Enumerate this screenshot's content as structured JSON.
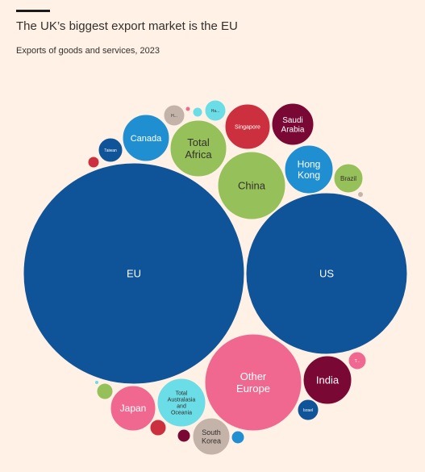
{
  "header": {
    "title": "The UK’s biggest export market is the EU",
    "subtitle": "Exports of goods and services, 2023"
  },
  "colors": {
    "background": "#fff1e5",
    "navy": "#0f5499",
    "blue": "#1f8fd2",
    "green": "#96c05a",
    "pink": "#f06790",
    "red": "#cc303f",
    "maroon": "#7a0835",
    "grey": "#c4b3a9",
    "cyan": "#6bdde6"
  },
  "chart_data": {
    "type": "bubble",
    "title": "The UK’s biggest export market is the EU",
    "subtitle": "Exports of goods and services, 2023",
    "series": [
      {
        "label": "EU",
        "color": "navy",
        "text_color": "#ffffff"
      },
      {
        "label": "US",
        "color": "navy",
        "text_color": "#ffffff"
      },
      {
        "label": "Other Europe",
        "color": "pink",
        "text_color": "#ffffff"
      },
      {
        "label": "China",
        "color": "green",
        "text_color": "#33302e"
      },
      {
        "label": "Total Africa",
        "color": "green",
        "text_color": "#33302e"
      },
      {
        "label": "India",
        "color": "maroon",
        "text_color": "#ffffff"
      },
      {
        "label": "Hong Kong",
        "color": "blue",
        "text_color": "#ffffff"
      },
      {
        "label": "Total Australasia and Oceania",
        "color": "cyan",
        "text_color": "#33302e"
      },
      {
        "label": "Canada",
        "color": "blue",
        "text_color": "#ffffff"
      },
      {
        "label": "Japan",
        "color": "pink",
        "text_color": "#ffffff"
      },
      {
        "label": "Singapore",
        "color": "red",
        "text_color": "#ffffff"
      },
      {
        "label": "Saudi Arabia",
        "color": "maroon",
        "text_color": "#ffffff"
      },
      {
        "label": "South Korea",
        "color": "grey",
        "text_color": "#33302e"
      },
      {
        "label": "Brazil",
        "color": "green",
        "text_color": "#33302e"
      },
      {
        "label": "Taiwan",
        "color": "navy",
        "text_color": "#ffffff"
      },
      {
        "label": "Israel",
        "color": "navy",
        "text_color": "#ffffff"
      },
      {
        "label": "H...",
        "color": "grey",
        "text_color": "#33302e"
      },
      {
        "label": "Ha...",
        "color": "cyan",
        "text_color": "#33302e"
      },
      {
        "label": "T...",
        "color": "pink",
        "text_color": "#ffffff"
      },
      {
        "label": "",
        "color": "red",
        "text_color": "#ffffff"
      },
      {
        "label": "",
        "color": "red",
        "text_color": "#ffffff"
      },
      {
        "label": "",
        "color": "maroon",
        "text_color": "#ffffff"
      },
      {
        "label": "",
        "color": "green",
        "text_color": "#33302e"
      },
      {
        "label": "",
        "color": "blue",
        "text_color": "#ffffff"
      },
      {
        "label": "",
        "color": "grey",
        "text_color": "#33302e"
      },
      {
        "label": "",
        "color": "pink",
        "text_color": "#ffffff"
      },
      {
        "label": "",
        "color": "cyan",
        "text_color": "#33302e"
      },
      {
        "label": "",
        "color": "cyan",
        "text_color": "#33302e"
      }
    ]
  }
}
